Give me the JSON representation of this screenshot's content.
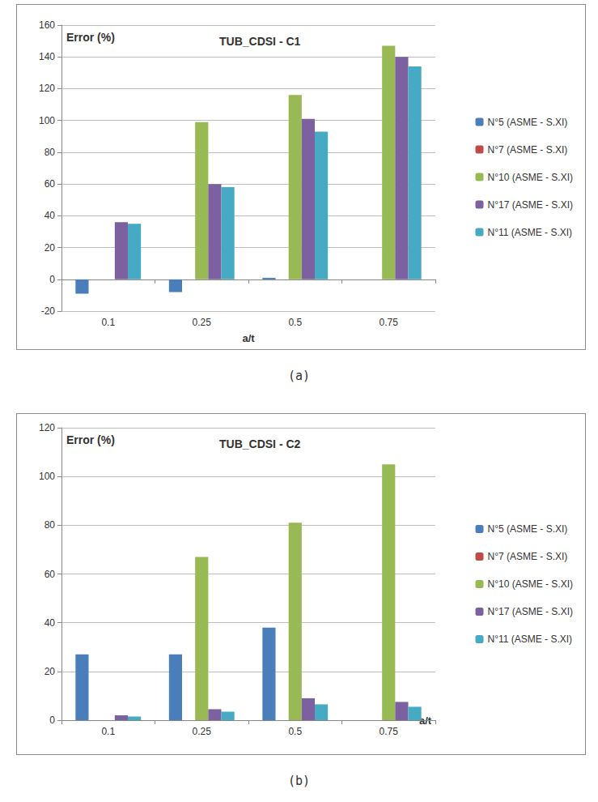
{
  "chart_data": [
    {
      "type": "bar",
      "title": "TUB_CDSI - C1",
      "caption": "(a)",
      "x_label": "a/t",
      "y_label": "Error (%)",
      "categories": [
        "0.1",
        "0.25",
        "0.5",
        "0.75"
      ],
      "series": [
        {
          "name": "N°5 (ASME - S.XI)",
          "color": "#4a7ebb",
          "values": [
            -9,
            -8,
            1,
            null
          ]
        },
        {
          "name": "N°7 (ASME - S.XI)",
          "color": "#be4b48",
          "values": [
            null,
            null,
            null,
            null
          ]
        },
        {
          "name": "N°10 (ASME - S.XI)",
          "color": "#98b954",
          "values": [
            null,
            99,
            116,
            147
          ]
        },
        {
          "name": "N°17 (ASME - S.XI)",
          "color": "#7d60a0",
          "values": [
            36,
            60,
            101,
            140
          ]
        },
        {
          "name": "N°11 (ASME - S.XI)",
          "color": "#46aac5",
          "values": [
            35,
            58,
            93,
            134
          ]
        }
      ],
      "ylim": [
        -20,
        160
      ],
      "yticks": [
        -20,
        0,
        20,
        40,
        60,
        80,
        100,
        120,
        140,
        160
      ],
      "grid": true,
      "legend": "right"
    },
    {
      "type": "bar",
      "title": "TUB_CDSI - C2",
      "caption": "(b)",
      "x_label": "a/t",
      "y_label": "Error (%)",
      "categories": [
        "0.1",
        "0.25",
        "0.5",
        "0.75"
      ],
      "series": [
        {
          "name": "N°5 (ASME - S.XI)",
          "color": "#4a7ebb",
          "values": [
            27,
            27,
            38,
            null
          ]
        },
        {
          "name": "N°7 (ASME - S.XI)",
          "color": "#be4b48",
          "values": [
            null,
            null,
            null,
            null
          ]
        },
        {
          "name": "N°10 (ASME - S.XI)",
          "color": "#98b954",
          "values": [
            null,
            67,
            81,
            105
          ]
        },
        {
          "name": "N°17 (ASME - S.XI)",
          "color": "#7d60a0",
          "values": [
            2,
            4.5,
            9,
            7.5
          ]
        },
        {
          "name": "N°11 (ASME - S.XI)",
          "color": "#46aac5",
          "values": [
            1.5,
            3.5,
            6.5,
            5.5
          ]
        }
      ],
      "ylim": [
        0,
        120
      ],
      "yticks": [
        0,
        20,
        40,
        60,
        80,
        100,
        120
      ],
      "grid": true,
      "legend": "right"
    }
  ]
}
